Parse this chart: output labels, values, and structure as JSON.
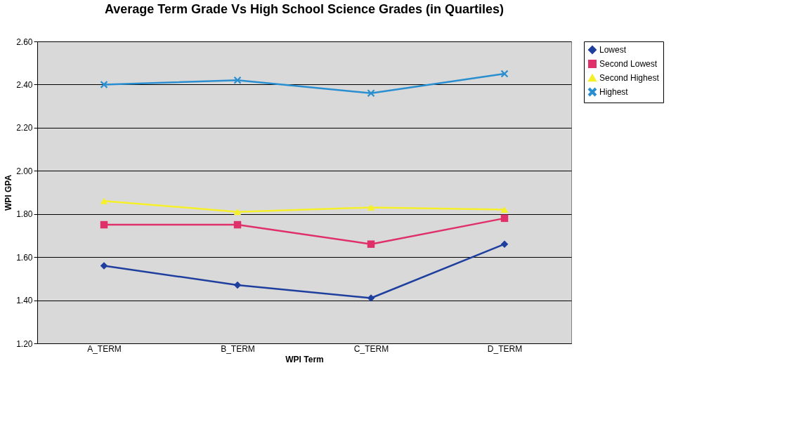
{
  "chart_data": {
    "type": "line",
    "title": "Average Term Grade Vs High School Science Grades (in Quartiles)",
    "xlabel": "WPI Term",
    "ylabel": "WPI GPA",
    "categories": [
      "A_TERM",
      "B_TERM",
      "C_TERM",
      "D_TERM"
    ],
    "series": [
      {
        "name": "Lowest",
        "color": "#1f3f9f",
        "marker": "diamond",
        "values": [
          1.56,
          1.47,
          1.41,
          1.66
        ]
      },
      {
        "name": "Second Lowest",
        "color": "#e0306a",
        "marker": "square",
        "values": [
          1.75,
          1.75,
          1.66,
          1.78
        ]
      },
      {
        "name": "Second Highest",
        "color": "#f5f02a",
        "marker": "triangle",
        "values": [
          1.86,
          1.81,
          1.83,
          1.82
        ]
      },
      {
        "name": "Highest",
        "color": "#2a8fd0",
        "marker": "cross",
        "values": [
          2.4,
          2.42,
          2.36,
          2.45
        ]
      }
    ],
    "ylim": [
      1.2,
      2.6
    ],
    "yticks": [
      {
        "value": 1.2,
        "label": "1.20"
      },
      {
        "value": 1.4,
        "label": "1.40"
      },
      {
        "value": 1.6,
        "label": "1.60"
      },
      {
        "value": 1.8,
        "label": "1.80"
      },
      {
        "value": 2.0,
        "label": "2.00"
      },
      {
        "value": 2.2,
        "label": "2.20"
      },
      {
        "value": 2.4,
        "label": "2.40"
      },
      {
        "value": 2.6,
        "label": "2.60"
      }
    ],
    "grid": "y",
    "legend": "right",
    "line_style": "solid"
  }
}
